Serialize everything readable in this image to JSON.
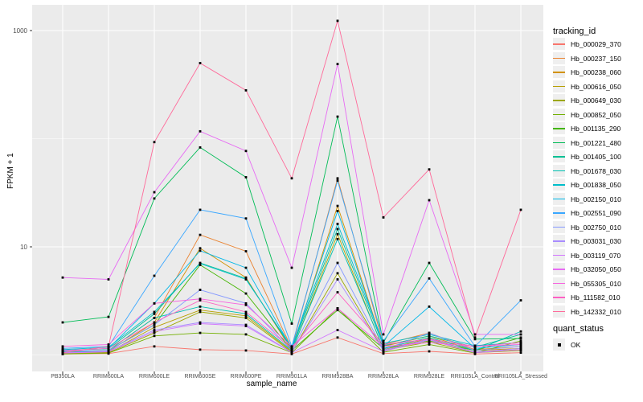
{
  "figure": {
    "background": "#ffffff",
    "panel_bg": "#ebebeb",
    "grid_color": "#ffffff",
    "tick_color": "#333333",
    "tick_label_color": "#4d4d4d",
    "point_color": "#000000"
  },
  "y_axis": {
    "title": "FPKM + 1",
    "tick_labels": [
      "1000",
      "10"
    ]
  },
  "x_axis": {
    "title": "sample_name"
  },
  "legend": {
    "tracking_title": "tracking_id",
    "quant_title": "quant_status",
    "quant_ok_label": "OK"
  },
  "chart_data": {
    "type": "line",
    "title": "",
    "xlabel": "sample_name",
    "ylabel": "FPKM + 1",
    "yscale": "log10",
    "ylim": [
      0.95,
      1600
    ],
    "yticks": [
      10,
      1000
    ],
    "grid": true,
    "legend_position": "right",
    "point_shape": "small-black-square",
    "categories": [
      "PB350LA",
      "RRIM600LA",
      "RRIM600LE",
      "RRIM600SE",
      "RRIM600PE",
      "RRIM901LA",
      "RRIM928BA",
      "RRIM928LA",
      "RRIM928LE",
      "RRII105LA_Control",
      "RRII105LA_Stressed"
    ],
    "series": [
      {
        "name": "Hb_000029_370",
        "color": "#F8766D",
        "values": [
          1.02,
          1.03,
          1.2,
          1.12,
          1.1,
          1.02,
          1.45,
          1.03,
          1.08,
          1.02,
          1.05
        ]
      },
      {
        "name": "Hb_000237_150",
        "color": "#EA8331",
        "values": [
          1.08,
          1.1,
          2.2,
          12.9,
          9.1,
          1.15,
          43,
          1.25,
          1.6,
          1.12,
          1.2
        ]
      },
      {
        "name": "Hb_000238_060",
        "color": "#D29200",
        "values": [
          1.05,
          1.08,
          2.0,
          9.7,
          5.2,
          1.1,
          23.9,
          1.2,
          1.5,
          1.1,
          1.15
        ]
      },
      {
        "name": "Hb_000616_050",
        "color": "#B79F00",
        "values": [
          1.04,
          1.06,
          1.8,
          2.6,
          2.3,
          1.08,
          13.1,
          1.12,
          1.42,
          1.06,
          1.12
        ]
      },
      {
        "name": "Hb_000649_030",
        "color": "#9CA700",
        "values": [
          1.03,
          1.05,
          1.6,
          2.5,
          2.2,
          1.06,
          5.7,
          1.1,
          1.32,
          1.05,
          1.1
        ]
      },
      {
        "name": "Hb_000852_050",
        "color": "#72B000",
        "values": [
          1.02,
          1.04,
          1.5,
          1.6,
          1.55,
          1.05,
          2.7,
          1.06,
          1.25,
          1.04,
          1.35
        ]
      },
      {
        "name": "Hb_001135_290",
        "color": "#44B500",
        "values": [
          1.06,
          1.1,
          1.9,
          6.8,
          3.7,
          1.1,
          2.6,
          1.15,
          1.35,
          1.1,
          1.45
        ]
      },
      {
        "name": "Hb_001221_480",
        "color": "#00BC56",
        "values": [
          2.0,
          2.25,
          28,
          83,
          44,
          1.95,
          160,
          1.3,
          7.1,
          1.4,
          1.42
        ]
      },
      {
        "name": "Hb_001405_100",
        "color": "#00C094",
        "values": [
          1.1,
          1.14,
          2.4,
          7.1,
          5.1,
          1.14,
          14.6,
          1.22,
          1.5,
          1.18,
          1.55
        ]
      },
      {
        "name": "Hb_001678_030",
        "color": "#00C1B2",
        "values": [
          1.06,
          1.1,
          2.2,
          2.8,
          2.4,
          1.1,
          11.8,
          1.15,
          1.45,
          1.1,
          1.65
        ]
      },
      {
        "name": "Hb_001838_050",
        "color": "#00BECB",
        "values": [
          1.12,
          1.18,
          2.5,
          7.0,
          5.0,
          1.18,
          16.3,
          1.28,
          1.55,
          1.22,
          1.3
        ]
      },
      {
        "name": "Hb_002150_010",
        "color": "#00B7E8",
        "values": [
          1.1,
          1.15,
          3.0,
          9.2,
          6.4,
          1.15,
          21.4,
          1.2,
          2.8,
          1.15,
          1.25
        ]
      },
      {
        "name": "Hb_002551_090",
        "color": "#39A7FF",
        "values": [
          1.15,
          1.2,
          5.4,
          22,
          18.3,
          1.2,
          41,
          1.35,
          5.1,
          1.2,
          3.2
        ]
      },
      {
        "name": "Hb_002750_010",
        "color": "#8599FF",
        "values": [
          1.08,
          1.1,
          1.9,
          4.0,
          3.0,
          1.1,
          7.1,
          1.12,
          1.6,
          1.1,
          1.2
        ]
      },
      {
        "name": "Hb_003031_030",
        "color": "#A98CFF",
        "values": [
          1.05,
          1.08,
          1.7,
          2.0,
          1.9,
          1.06,
          5.0,
          1.1,
          1.4,
          1.06,
          1.15
        ]
      },
      {
        "name": "Hb_003119_070",
        "color": "#D277FF",
        "values": [
          1.04,
          1.07,
          1.65,
          1.95,
          1.85,
          1.05,
          1.7,
          1.08,
          1.38,
          1.05,
          1.12
        ]
      },
      {
        "name": "Hb_032050_050",
        "color": "#E76BF3",
        "values": [
          5.2,
          5.0,
          32,
          117,
          77,
          6.4,
          490,
          1.55,
          27,
          1.55,
          1.55
        ]
      },
      {
        "name": "Hb_055305_010",
        "color": "#F763E0",
        "values": [
          1.2,
          1.25,
          3.0,
          3.3,
          2.9,
          1.2,
          2.7,
          1.2,
          1.3,
          1.2,
          1.25
        ]
      },
      {
        "name": "Hb_111582_010",
        "color": "#FF61C3",
        "values": [
          1.1,
          1.15,
          2.0,
          3.2,
          2.5,
          1.15,
          3.8,
          1.25,
          1.4,
          1.2,
          1.3
        ]
      },
      {
        "name": "Hb_142332_010",
        "color": "#FF6A9A",
        "values": [
          1.05,
          1.2,
          93,
          500,
          280,
          43,
          1230,
          18.7,
          52,
          1.45,
          22
        ]
      }
    ]
  }
}
